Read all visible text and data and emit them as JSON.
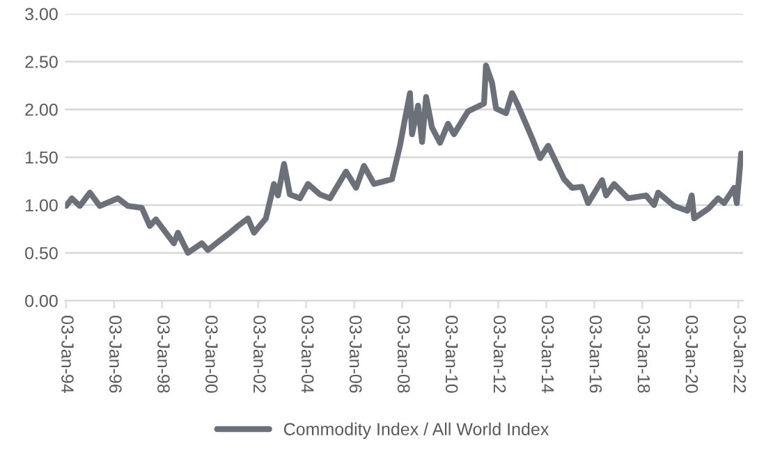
{
  "chart_data": {
    "type": "line",
    "x": [
      "1994-01-03",
      "1994-04",
      "1994-08",
      "1995-01",
      "1995-06",
      "1996-03",
      "1996-08",
      "1997-03",
      "1997-07",
      "1997-10",
      "1998-07",
      "1998-09",
      "1999-02",
      "1999-09",
      "1999-12",
      "2000-06",
      "2000-11",
      "2001-03",
      "2001-08",
      "2001-11",
      "2002-05",
      "2002-09",
      "2002-11",
      "2003-02",
      "2003-05",
      "2003-10",
      "2004-02",
      "2004-08",
      "2005-01",
      "2005-09",
      "2006-02",
      "2006-06",
      "2006-11",
      "2007-08",
      "2007-12",
      "2008-02",
      "2008-05",
      "2008-06",
      "2008-09",
      "2008-11",
      "2009-01",
      "2009-04",
      "2009-08",
      "2009-12",
      "2010-03",
      "2010-10",
      "2011-06",
      "2011-07",
      "2011-10",
      "2011-12",
      "2012-05",
      "2012-08",
      "2012-11",
      "2013-06",
      "2013-10",
      "2014-02",
      "2014-10",
      "2015-02",
      "2015-07",
      "2015-10",
      "2016-05",
      "2016-07",
      "2016-11",
      "2017-06",
      "2018-03",
      "2018-07",
      "2018-09",
      "2019-05",
      "2019-11-20",
      "2020-01-25",
      "2020-03",
      "2020-10",
      "2021-03",
      "2021-06",
      "2021-11",
      "2021-12-10",
      "2022-02-15"
    ],
    "series": [
      {
        "name": "Commodity Index / All World Index",
        "color": "#6b7079",
        "values": [
          0.99,
          1.07,
          0.99,
          1.13,
          0.99,
          1.07,
          0.99,
          0.97,
          0.78,
          0.85,
          0.6,
          0.71,
          0.5,
          0.6,
          0.53,
          0.63,
          0.71,
          0.78,
          0.86,
          0.71,
          0.86,
          1.22,
          1.1,
          1.43,
          1.11,
          1.07,
          1.22,
          1.11,
          1.07,
          1.35,
          1.18,
          1.41,
          1.22,
          1.27,
          1.62,
          1.85,
          2.17,
          1.74,
          2.04,
          1.66,
          2.13,
          1.81,
          1.65,
          1.85,
          1.74,
          1.98,
          2.06,
          2.46,
          2.28,
          2.01,
          1.96,
          2.17,
          2.04,
          1.7,
          1.49,
          1.62,
          1.27,
          1.18,
          1.19,
          1.02,
          1.26,
          1.1,
          1.22,
          1.07,
          1.1,
          1.0,
          1.13,
          0.99,
          0.94,
          1.1,
          0.86,
          0.96,
          1.07,
          1.02,
          1.18,
          1.02,
          1.54
        ]
      }
    ],
    "xlim": [
      "1993-12-20",
      "2022-03-15"
    ],
    "xticks": [
      {
        "value": "1994-01-03",
        "label": "03-Jan-94"
      },
      {
        "value": "1996-01-03",
        "label": "03-Jan-96"
      },
      {
        "value": "1998-01-03",
        "label": "03-Jan-98"
      },
      {
        "value": "2000-01-03",
        "label": "03-Jan-00"
      },
      {
        "value": "2002-01-03",
        "label": "03-Jan-02"
      },
      {
        "value": "2004-01-03",
        "label": "03-Jan-04"
      },
      {
        "value": "2006-01-03",
        "label": "03-Jan-06"
      },
      {
        "value": "2008-01-03",
        "label": "03-Jan-08"
      },
      {
        "value": "2010-01-03",
        "label": "03-Jan-10"
      },
      {
        "value": "2012-01-03",
        "label": "03-Jan-12"
      },
      {
        "value": "2014-01-03",
        "label": "03-Jan-14"
      },
      {
        "value": "2016-01-03",
        "label": "03-Jan-16"
      },
      {
        "value": "2018-01-03",
        "label": "03-Jan-18"
      },
      {
        "value": "2020-01-03",
        "label": "03-Jan-20"
      },
      {
        "value": "2022-01-03",
        "label": "03-Jan-22"
      }
    ],
    "ylim": [
      0,
      3
    ],
    "yticks": [
      {
        "value": 0,
        "label": "0.00"
      },
      {
        "value": 0.5,
        "label": "0.50"
      },
      {
        "value": 1,
        "label": "1.00"
      },
      {
        "value": 1.5,
        "label": "1.50"
      },
      {
        "value": 2,
        "label": "2.00"
      },
      {
        "value": 2.5,
        "label": "2.50"
      },
      {
        "value": 3,
        "label": "3.00"
      }
    ],
    "grid": "y",
    "legend": "bottom",
    "line_style": "solid",
    "marker": "none"
  }
}
